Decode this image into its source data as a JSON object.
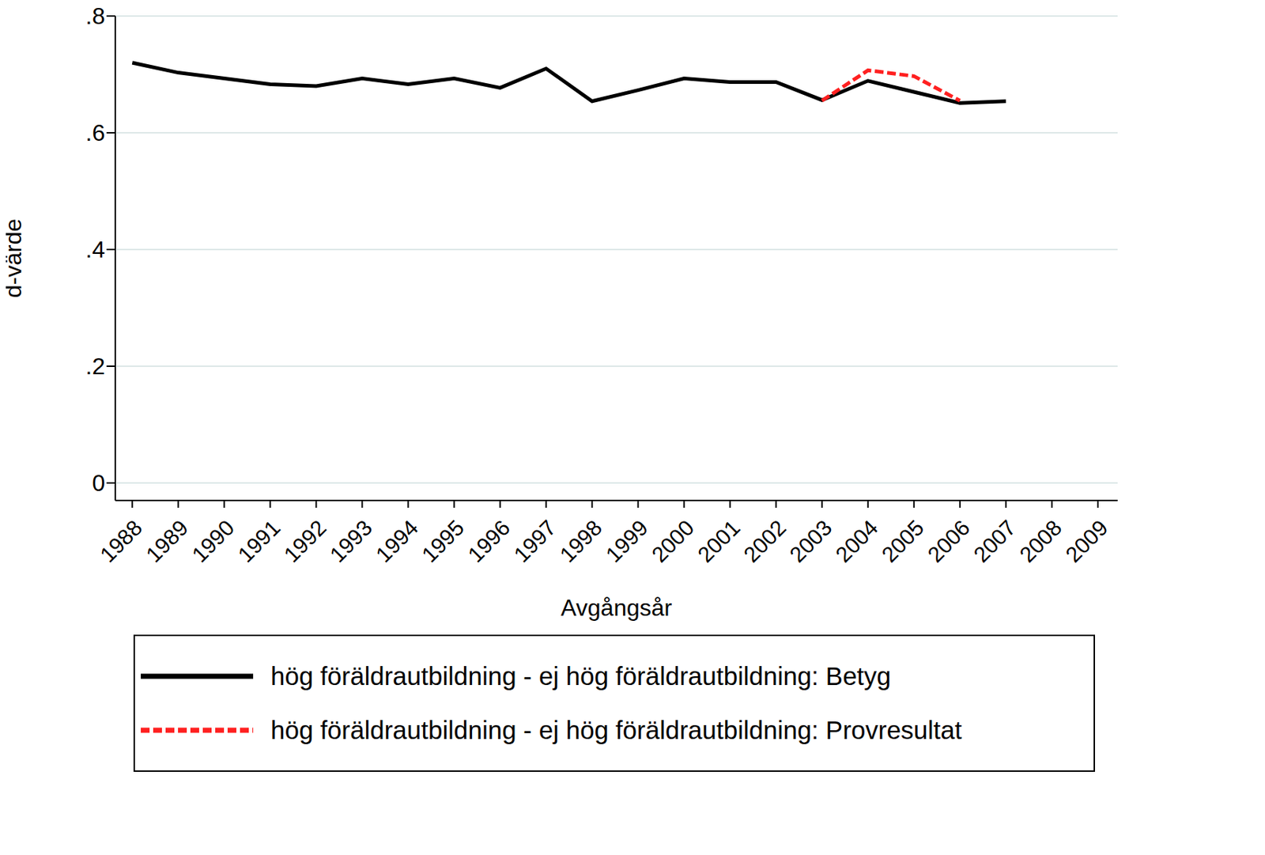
{
  "chart_data": {
    "type": "line",
    "x_label": "Avgångsår",
    "y_label": "d-värde",
    "x": [
      1988,
      1989,
      1990,
      1991,
      1992,
      1993,
      1994,
      1995,
      1996,
      1997,
      1998,
      1999,
      2000,
      2001,
      2002,
      2003,
      2004,
      2005,
      2006,
      2007,
      2008,
      2009
    ],
    "series": [
      {
        "name": "hög föräldrautbildning - ej hög föräldrautbildning: Betyg",
        "color": "#000000",
        "line_style": "solid",
        "values": [
          0.72,
          0.703,
          0.693,
          0.683,
          0.68,
          0.693,
          0.683,
          0.693,
          0.677,
          0.71,
          0.654,
          0.673,
          0.693,
          0.687,
          0.687,
          0.656,
          0.689,
          0.67,
          0.651,
          0.654,
          null,
          null
        ]
      },
      {
        "name": "hög föräldrautbildning - ej hög föräldrautbildning: Provresultat",
        "color": "#ff2020",
        "line_style": "dashed",
        "values": [
          null,
          null,
          null,
          null,
          null,
          null,
          null,
          null,
          null,
          null,
          null,
          null,
          null,
          null,
          null,
          0.655,
          0.707,
          0.697,
          0.655,
          null,
          null,
          null
        ]
      }
    ],
    "xlim": [
      1987.63,
      2009.43
    ],
    "xticks": [
      1988,
      1989,
      1990,
      1991,
      1992,
      1993,
      1994,
      1995,
      1996,
      1997,
      1998,
      1999,
      2000,
      2001,
      2002,
      2003,
      2004,
      2005,
      2006,
      2007,
      2008,
      2009
    ],
    "ylim": [
      -0.03,
      0.8
    ],
    "yticks": [
      0,
      {
        "value": 0.2,
        "label": ".2"
      },
      {
        "value": 0.4,
        "label": ".4"
      },
      {
        "value": 0.6,
        "label": ".6"
      },
      {
        "value": 0.8,
        "label": ".8"
      }
    ],
    "grid": true,
    "legend": "bottom"
  }
}
